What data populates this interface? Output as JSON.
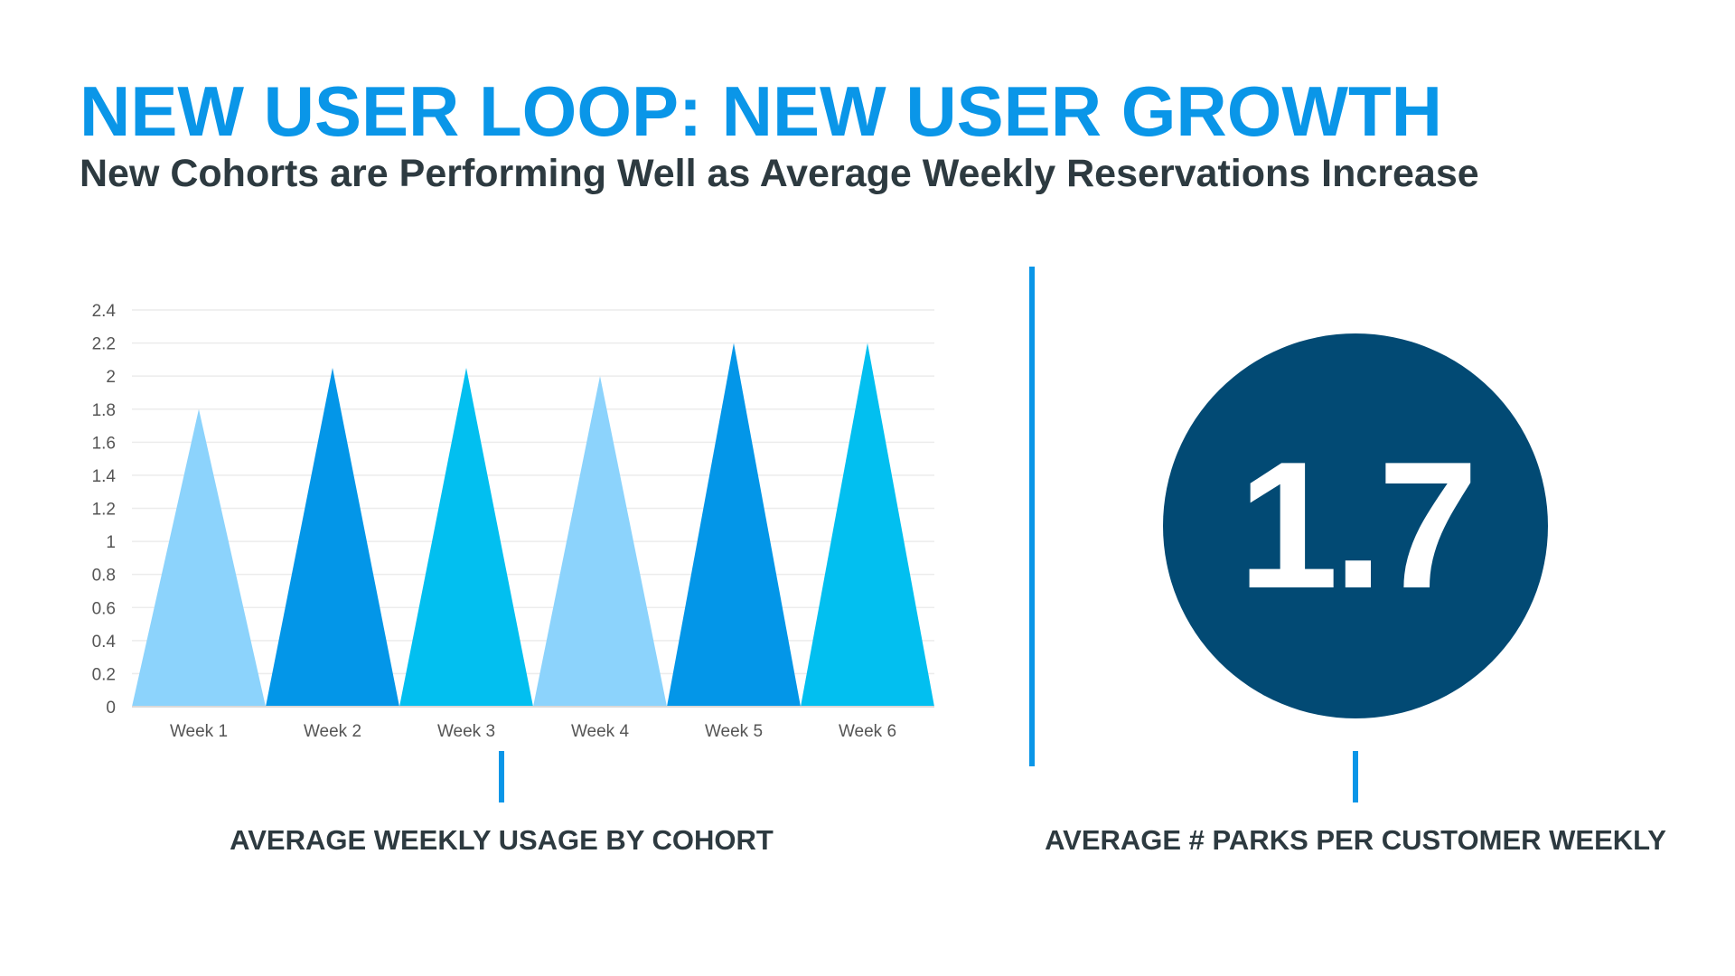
{
  "slide": {
    "title": "NEW USER LOOP: NEW USER GROWTH",
    "subtitle": "New Cohorts are Performing Well as Average Weekly Reservations Increase"
  },
  "left_panel": {
    "caption": "AVERAGE WEEKLY USAGE BY COHORT"
  },
  "right_panel": {
    "stat_value": "1.7",
    "caption": "AVERAGE # PARKS PER CUSTOMER WEEKLY",
    "circle_color": "#024a74"
  },
  "chart_data": {
    "type": "bar",
    "mark_shape": "triangle",
    "title": "AVERAGE WEEKLY USAGE BY COHORT",
    "categories": [
      "Week 1",
      "Week 2",
      "Week 3",
      "Week 4",
      "Week 5",
      "Week 6"
    ],
    "values": [
      1.8,
      2.05,
      2.05,
      2.0,
      2.2,
      2.2
    ],
    "colors": [
      "#8cd3fc",
      "#0396e8",
      "#02bff0",
      "#8cd3fc",
      "#0396e8",
      "#02bff0"
    ],
    "ylim": [
      0,
      2.4
    ],
    "yticks": [
      "0",
      "0.2",
      "0.4",
      "0.6",
      "0.8",
      "1",
      "1.2",
      "1.4",
      "1.6",
      "1.8",
      "2",
      "2.2",
      "2.4"
    ],
    "ytick_values": [
      0,
      0.2,
      0.4,
      0.6,
      0.8,
      1,
      1.2,
      1.4,
      1.6,
      1.8,
      2,
      2.2,
      2.4
    ],
    "xlabel": "",
    "ylabel": "",
    "grid": true,
    "legend": "none"
  }
}
